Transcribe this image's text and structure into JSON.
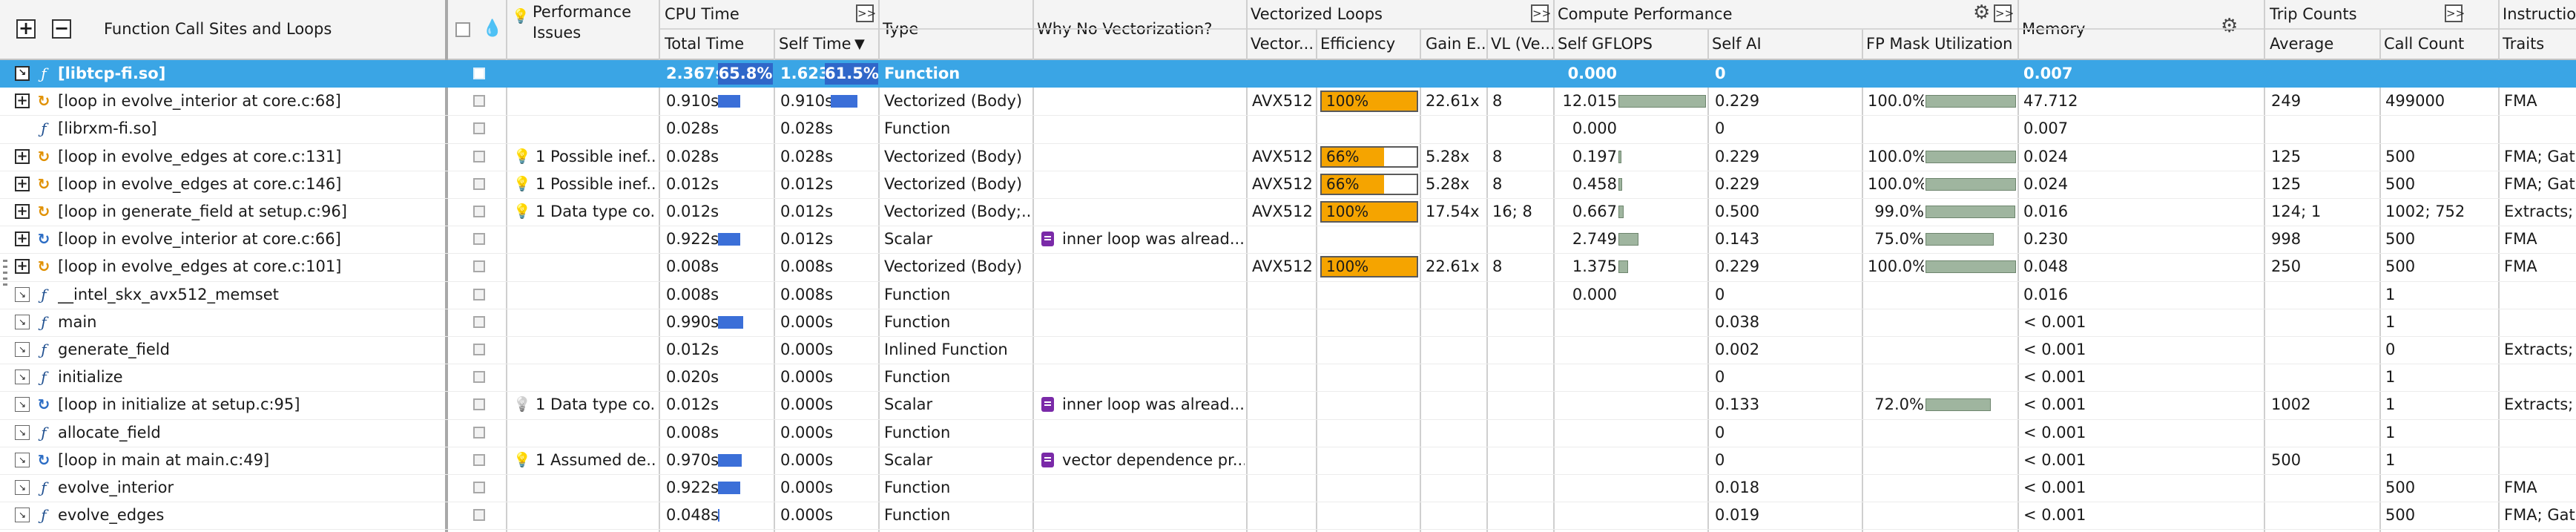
{
  "header": {
    "function_col": "Function Call Sites and Loops",
    "perf_issues_line1": "Performance",
    "perf_issues_line2": "Issues",
    "cpu_time_group": "CPU Time",
    "total_time": "Total Time",
    "self_time": "Self Time",
    "type": "Type",
    "why_no_vec": "Why No Vectorization?",
    "vectorized_loops_group": "Vectorized Loops",
    "vectorized": "Vector...",
    "efficiency": "Efficiency",
    "gain": "Gain E...",
    "vl": "VL (Ve...",
    "compute_perf_group": "Compute Performance",
    "self_gflops": "Self GFLOPS",
    "self_ai": "Self AI",
    "fp_mask": "FP Mask Utilization",
    "memory": "Memory",
    "trip_counts_group": "Trip Counts",
    "average": "Average",
    "call_count": "Call Count",
    "instruction_group": "Instructio",
    "traits": "Traits",
    "expand_glyph": ">>",
    "sort_glyph": "▼"
  },
  "rows": [
    {
      "expander": "collapse",
      "icon": "function-icon",
      "name": "[libtcp-fi.so]",
      "issue": "",
      "issue_icon": "",
      "total": "2.367s",
      "total_pct": "65.8%",
      "total_bar": 0,
      "self": "1.623s",
      "self_pct": "61.5%",
      "self_bar": 0,
      "type": "Function",
      "why": "",
      "why_icon": false,
      "vec": "",
      "eff": "",
      "eff_value": 0,
      "gain": "",
      "vl": "",
      "gflops": "0.000",
      "gflops_bar": 0,
      "ai": "0",
      "fp": "",
      "fp_bar": 0,
      "memory": "0.007",
      "avg": "",
      "calls": "",
      "traits": "",
      "selected": true
    },
    {
      "expander": "plus",
      "icon": "loop-vector-icon",
      "name": "[loop in evolve_interior at core.c:68]",
      "issue": "",
      "issue_icon": "",
      "total": "0.910s",
      "total_pct": "",
      "total_bar": 0.38,
      "self": "0.910s",
      "self_pct": "",
      "self_bar": 0.56,
      "type": "Vectorized (Body)",
      "why": "",
      "why_icon": false,
      "vec": "AVX512",
      "eff": "100%",
      "eff_value": 1.0,
      "gain": "22.61x",
      "vl": "8",
      "gflops": "12.015",
      "gflops_bar": 1.0,
      "ai": "0.229",
      "fp": "100.0%",
      "fp_bar": 1.0,
      "memory": "47.712",
      "avg": "249",
      "calls": "499000",
      "traits": "FMA",
      "selected": false
    },
    {
      "expander": "none",
      "icon": "function-icon",
      "name": "[librxm-fi.so]",
      "issue": "",
      "issue_icon": "",
      "total": "0.028s",
      "total_pct": "",
      "total_bar": 0,
      "self": "0.028s",
      "self_pct": "",
      "self_bar": 0,
      "type": "Function",
      "why": "",
      "why_icon": false,
      "vec": "",
      "eff": "",
      "eff_value": 0,
      "gain": "",
      "vl": "",
      "gflops": "0.000",
      "gflops_bar": 0,
      "ai": "0",
      "fp": "",
      "fp_bar": 0,
      "memory": "0.007",
      "avg": "",
      "calls": "",
      "traits": "",
      "selected": false
    },
    {
      "expander": "plus",
      "icon": "loop-vector-icon",
      "name": "[loop in evolve_edges at core.c:131]",
      "issue": "1 Possible inef...",
      "issue_icon": "bulb",
      "total": "0.028s",
      "total_pct": "",
      "total_bar": 0,
      "self": "0.028s",
      "self_pct": "",
      "self_bar": 0,
      "type": "Vectorized (Body)",
      "why": "",
      "why_icon": false,
      "vec": "AVX512",
      "eff": "66%",
      "eff_value": 0.66,
      "gain": "5.28x",
      "vl": "8",
      "gflops": "0.197",
      "gflops_bar": 0.02,
      "ai": "0.229",
      "fp": "100.0%",
      "fp_bar": 1.0,
      "memory": "0.024",
      "avg": "125",
      "calls": "500",
      "traits": "FMA; Gat",
      "selected": false
    },
    {
      "expander": "plus",
      "icon": "loop-vector-icon",
      "name": "[loop in evolve_edges at core.c:146]",
      "issue": "1 Possible inef...",
      "issue_icon": "bulb",
      "total": "0.012s",
      "total_pct": "",
      "total_bar": 0,
      "self": "0.012s",
      "self_pct": "",
      "self_bar": 0,
      "type": "Vectorized (Body)",
      "why": "",
      "why_icon": false,
      "vec": "AVX512",
      "eff": "66%",
      "eff_value": 0.66,
      "gain": "5.28x",
      "vl": "8",
      "gflops": "0.458",
      "gflops_bar": 0.04,
      "ai": "0.229",
      "fp": "100.0%",
      "fp_bar": 1.0,
      "memory": "0.024",
      "avg": "125",
      "calls": "500",
      "traits": "FMA; Gat",
      "selected": false
    },
    {
      "expander": "plus",
      "icon": "loop-vector-icon",
      "name": "[loop in generate_field at setup.c:96]",
      "issue": "1 Data type co...",
      "issue_icon": "bulb",
      "total": "0.012s",
      "total_pct": "",
      "total_bar": 0,
      "self": "0.012s",
      "self_pct": "",
      "self_bar": 0,
      "type": "Vectorized (Body;...",
      "why": "",
      "why_icon": false,
      "vec": "AVX512",
      "eff": "100%",
      "eff_value": 1.0,
      "gain": "17.54x",
      "vl": "16; 8",
      "gflops": "0.667",
      "gflops_bar": 0.06,
      "ai": "0.500",
      "fp": "99.0%",
      "fp_bar": 0.99,
      "memory": "0.016",
      "avg": "124; 1",
      "calls": "1002; 752",
      "traits": "Extracts; I",
      "selected": false
    },
    {
      "expander": "plus",
      "icon": "loop-scalar-icon",
      "name": "[loop in evolve_interior at core.c:66]",
      "issue": "",
      "issue_icon": "",
      "total": "0.922s",
      "total_pct": "",
      "total_bar": 0.38,
      "self": "0.012s",
      "self_pct": "",
      "self_bar": 0,
      "type": "Scalar",
      "why": "inner loop was alread...",
      "why_icon": true,
      "vec": "",
      "eff": "",
      "eff_value": 0,
      "gain": "",
      "vl": "",
      "gflops": "2.749",
      "gflops_bar": 0.23,
      "ai": "0.143",
      "fp": "75.0%",
      "fp_bar": 0.75,
      "memory": "0.230",
      "avg": "998",
      "calls": "500",
      "traits": "FMA",
      "selected": false
    },
    {
      "expander": "plus",
      "icon": "loop-vector-icon",
      "name": "[loop in evolve_edges at core.c:101]",
      "issue": "",
      "issue_icon": "",
      "total": "0.008s",
      "total_pct": "",
      "total_bar": 0,
      "self": "0.008s",
      "self_pct": "",
      "self_bar": 0,
      "type": "Vectorized (Body)",
      "why": "",
      "why_icon": false,
      "vec": "AVX512",
      "eff": "100%",
      "eff_value": 1.0,
      "gain": "22.61x",
      "vl": "8",
      "gflops": "1.375",
      "gflops_bar": 0.11,
      "ai": "0.229",
      "fp": "100.0%",
      "fp_bar": 1.0,
      "memory": "0.048",
      "avg": "250",
      "calls": "500",
      "traits": "FMA",
      "selected": false
    },
    {
      "expander": "arrow",
      "icon": "function-icon",
      "name": "__intel_skx_avx512_memset",
      "issue": "",
      "issue_icon": "",
      "total": "0.008s",
      "total_pct": "",
      "total_bar": 0,
      "self": "0.008s",
      "self_pct": "",
      "self_bar": 0,
      "type": "Function",
      "why": "",
      "why_icon": false,
      "vec": "",
      "eff": "",
      "eff_value": 0,
      "gain": "",
      "vl": "",
      "gflops": "0.000",
      "gflops_bar": 0,
      "ai": "0",
      "fp": "",
      "fp_bar": 0,
      "memory": "0.016",
      "avg": "",
      "calls": "1",
      "traits": "",
      "selected": false
    },
    {
      "expander": "arrow",
      "icon": "function-icon",
      "name": "main",
      "issue": "",
      "issue_icon": "",
      "total": "0.990s",
      "total_pct": "",
      "total_bar": 0.42,
      "self": "0.000s",
      "self_pct": "",
      "self_bar": 0,
      "type": "Function",
      "why": "",
      "why_icon": false,
      "vec": "",
      "eff": "",
      "eff_value": 0,
      "gain": "",
      "vl": "",
      "gflops": "",
      "gflops_bar": 0,
      "ai": "0.038",
      "fp": "",
      "fp_bar": 0,
      "memory": "< 0.001",
      "avg": "",
      "calls": "1",
      "traits": "",
      "selected": false
    },
    {
      "expander": "arrow",
      "icon": "function-icon",
      "name": "generate_field",
      "issue": "",
      "issue_icon": "",
      "total": "0.012s",
      "total_pct": "",
      "total_bar": 0,
      "self": "0.000s",
      "self_pct": "",
      "self_bar": 0,
      "type": "Inlined Function",
      "why": "",
      "why_icon": false,
      "vec": "",
      "eff": "",
      "eff_value": 0,
      "gain": "",
      "vl": "",
      "gflops": "",
      "gflops_bar": 0,
      "ai": "0.002",
      "fp": "",
      "fp_bar": 0,
      "memory": "< 0.001",
      "avg": "",
      "calls": "0",
      "traits": "Extracts; I",
      "selected": false
    },
    {
      "expander": "arrow",
      "icon": "function-icon",
      "name": "initialize",
      "issue": "",
      "issue_icon": "",
      "total": "0.020s",
      "total_pct": "",
      "total_bar": 0,
      "self": "0.000s",
      "self_pct": "",
      "self_bar": 0,
      "type": "Function",
      "why": "",
      "why_icon": false,
      "vec": "",
      "eff": "",
      "eff_value": 0,
      "gain": "",
      "vl": "",
      "gflops": "",
      "gflops_bar": 0,
      "ai": "0",
      "fp": "",
      "fp_bar": 0,
      "memory": "< 0.001",
      "avg": "",
      "calls": "1",
      "traits": "",
      "selected": false
    },
    {
      "expander": "arrow",
      "icon": "loop-scalar-icon",
      "name": "[loop in initialize at setup.c:95]",
      "issue": "1 Data type co...",
      "issue_icon": "bulb-gray",
      "total": "0.012s",
      "total_pct": "",
      "total_bar": 0,
      "self": "0.000s",
      "self_pct": "",
      "self_bar": 0,
      "type": "Scalar",
      "why": "inner loop was alread...",
      "why_icon": true,
      "vec": "",
      "eff": "",
      "eff_value": 0,
      "gain": "",
      "vl": "",
      "gflops": "",
      "gflops_bar": 0,
      "ai": "0.133",
      "fp": "72.0%",
      "fp_bar": 0.72,
      "memory": "< 0.001",
      "avg": "1002",
      "calls": "1",
      "traits": "Extracts; I",
      "selected": false
    },
    {
      "expander": "arrow",
      "icon": "function-icon",
      "name": "allocate_field",
      "issue": "",
      "issue_icon": "",
      "total": "0.008s",
      "total_pct": "",
      "total_bar": 0,
      "self": "0.000s",
      "self_pct": "",
      "self_bar": 0,
      "type": "Function",
      "why": "",
      "why_icon": false,
      "vec": "",
      "eff": "",
      "eff_value": 0,
      "gain": "",
      "vl": "",
      "gflops": "",
      "gflops_bar": 0,
      "ai": "0",
      "fp": "",
      "fp_bar": 0,
      "memory": "< 0.001",
      "avg": "",
      "calls": "1",
      "traits": "",
      "selected": false
    },
    {
      "expander": "arrow",
      "icon": "loop-scalar-icon",
      "name": "[loop in main at main.c:49]",
      "issue": "1 Assumed de...",
      "issue_icon": "bulb",
      "total": "0.970s",
      "total_pct": "",
      "total_bar": 0.4,
      "self": "0.000s",
      "self_pct": "",
      "self_bar": 0,
      "type": "Scalar",
      "why": "vector dependence pr...",
      "why_icon": true,
      "vec": "",
      "eff": "",
      "eff_value": 0,
      "gain": "",
      "vl": "",
      "gflops": "",
      "gflops_bar": 0,
      "ai": "0",
      "fp": "",
      "fp_bar": 0,
      "memory": "< 0.001",
      "avg": "500",
      "calls": "1",
      "traits": "",
      "selected": false
    },
    {
      "expander": "arrow",
      "icon": "function-icon",
      "name": "evolve_interior",
      "issue": "",
      "issue_icon": "",
      "total": "0.922s",
      "total_pct": "",
      "total_bar": 0.38,
      "self": "0.000s",
      "self_pct": "",
      "self_bar": 0,
      "type": "Function",
      "why": "",
      "why_icon": false,
      "vec": "",
      "eff": "",
      "eff_value": 0,
      "gain": "",
      "vl": "",
      "gflops": "",
      "gflops_bar": 0,
      "ai": "0.018",
      "fp": "",
      "fp_bar": 0,
      "memory": "< 0.001",
      "avg": "",
      "calls": "500",
      "traits": "FMA",
      "selected": false
    },
    {
      "expander": "arrow",
      "icon": "function-icon",
      "name": "evolve_edges",
      "issue": "",
      "issue_icon": "",
      "total": "0.048s",
      "total_pct": "",
      "total_bar": 0.02,
      "self": "0.000s",
      "self_pct": "",
      "self_bar": 0,
      "type": "Function",
      "why": "",
      "why_icon": false,
      "vec": "",
      "eff": "",
      "eff_value": 0,
      "gain": "",
      "vl": "",
      "gflops": "",
      "gflops_bar": 0,
      "ai": "0.019",
      "fp": "",
      "fp_bar": 0,
      "memory": "< 0.001",
      "avg": "",
      "calls": "500",
      "traits": "FMA; Gat",
      "selected": false
    }
  ],
  "colors": {
    "selection": "#3aa5e5",
    "cpu_bar": "#3b6fd8",
    "efficiency": "#f5a400",
    "gflops_bar": "#9fb59f",
    "no_vec_icon": "#7a2aa8"
  }
}
